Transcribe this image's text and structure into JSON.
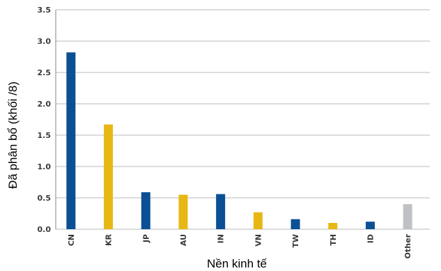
{
  "chart_data": {
    "type": "bar",
    "title": "",
    "xlabel": "Nền kinh tế",
    "ylabel": "Đã phân bổ (khối /8)",
    "ylim": [
      0,
      3.5
    ],
    "yticks": [
      "0.0",
      "0.5",
      "1.0",
      "1.5",
      "2.0",
      "2.5",
      "3.0",
      "3.5"
    ],
    "grid": true,
    "categories": [
      "CN",
      "KR",
      "JP",
      "AU",
      "IN",
      "VN",
      "TW",
      "TH",
      "ID",
      "Other"
    ],
    "values": [
      2.82,
      1.67,
      0.59,
      0.55,
      0.56,
      0.27,
      0.16,
      0.1,
      0.12,
      0.4
    ],
    "bar_colors": [
      "#0b4f95",
      "#e7b814",
      "#0b4f95",
      "#e7b814",
      "#0b4f95",
      "#e7b814",
      "#0b4f95",
      "#e7b814",
      "#0b4f95",
      "#bfc2c5"
    ],
    "grid_color": "#c8c8c8",
    "axis_color": "#9a9a9a"
  }
}
